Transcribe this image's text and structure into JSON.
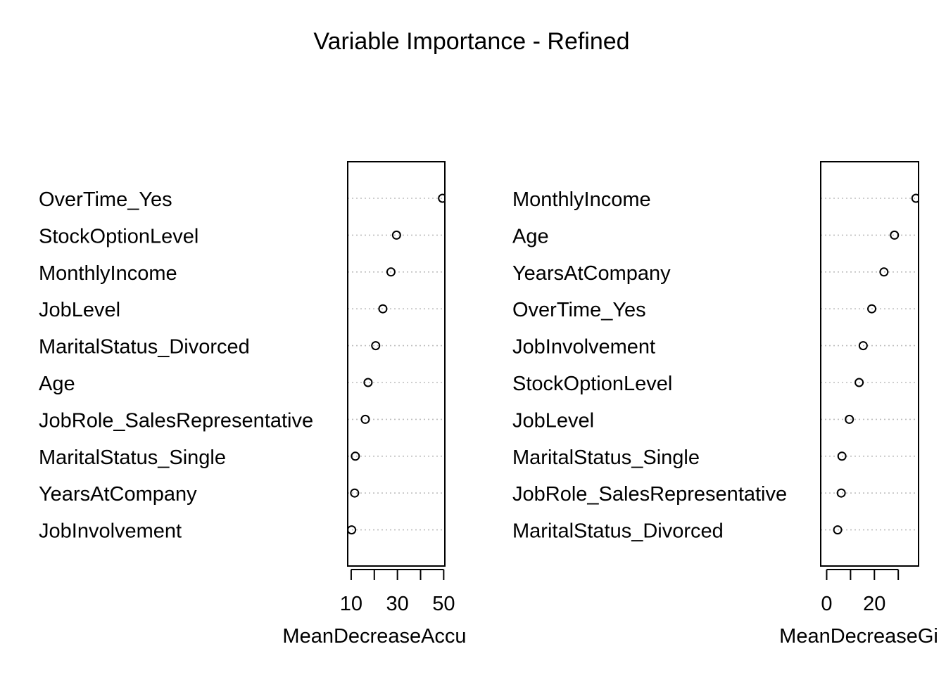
{
  "chart_title": "Variable Importance - Refined",
  "chart_data": [
    {
      "type": "scatter",
      "subtype": "dotchart",
      "xlabel": "MeanDecreaseAccuracy",
      "xlabel_visible": "MeanDecreaseAccu",
      "xlim": [
        8.5,
        50.5
      ],
      "tick_values": [
        10,
        20,
        30,
        40,
        50
      ],
      "tick_labels": [
        "10",
        "30",
        "50"
      ],
      "grid": "dotted horizontal",
      "categories": [
        "OverTime_Yes",
        "StockOptionLevel",
        "MonthlyIncome",
        "JobLevel",
        "MaritalStatus_Divorced",
        "Age",
        "JobRole_SalesRepresentative",
        "MaritalStatus_Single",
        "YearsAtCompany",
        "JobInvolvement"
      ],
      "values": [
        49.5,
        29.6,
        27.2,
        23.7,
        20.6,
        17.3,
        16.1,
        11.8,
        11.5,
        10.2
      ]
    },
    {
      "type": "scatter",
      "subtype": "dotchart",
      "xlabel": "MeanDecreaseGini",
      "xlabel_visible": "MeanDecreaseGi",
      "xlim": [
        -2.5,
        38.5
      ],
      "tick_values": [
        0,
        10,
        20,
        30
      ],
      "tick_labels": [
        "0",
        "20"
      ],
      "grid": "dotted horizontal",
      "categories": [
        "MonthlyIncome",
        "Age",
        "YearsAtCompany",
        "OverTime_Yes",
        "JobInvolvement",
        "StockOptionLevel",
        "JobLevel",
        "MaritalStatus_Single",
        "JobRole_SalesRepresentative",
        "MaritalStatus_Divorced"
      ],
      "values": [
        37.4,
        28.4,
        24.0,
        18.9,
        15.3,
        13.6,
        9.5,
        6.4,
        6.1,
        4.6
      ]
    }
  ]
}
